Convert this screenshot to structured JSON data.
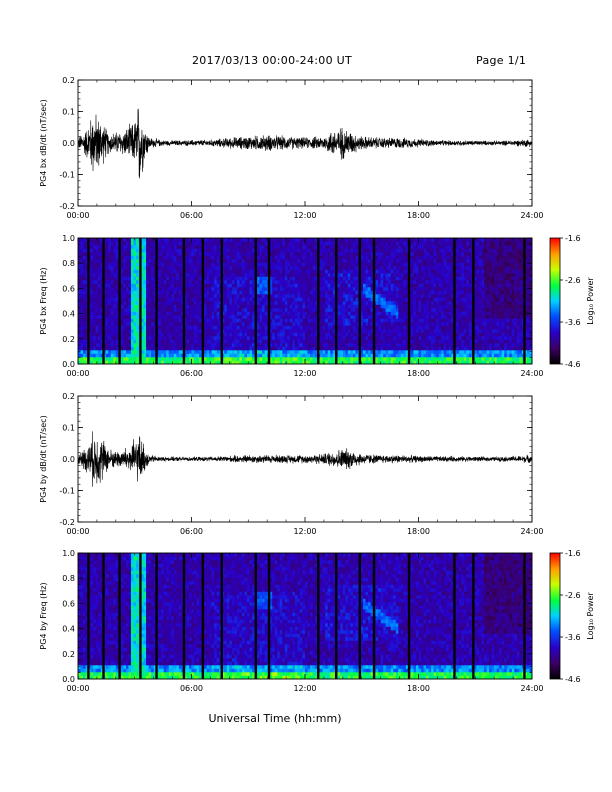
{
  "header": {
    "title": "2017/03/13  00:00-24:00 UT",
    "page": "Page 1/1"
  },
  "xaxis_label": "Universal Time (hh:mm)",
  "chart_data": [
    {
      "type": "line",
      "ylabel": "PG4 bx dB/dt (nT/sec)",
      "ylim": [
        -0.2,
        0.2
      ],
      "yticks": [
        "0.2",
        "0.1",
        "0.0",
        "-0.1",
        "-0.2"
      ],
      "xticks": [
        "00:00",
        "06:00",
        "12:00",
        "18:00",
        "24:00"
      ],
      "xlim_hours": [
        0,
        24
      ],
      "envelope": {
        "hours": [
          0,
          0.5,
          0.8,
          1.2,
          1.6,
          2.0,
          2.5,
          3.0,
          3.25,
          3.5,
          3.8,
          4.5,
          5.5,
          7.0,
          8.0,
          9.0,
          10.0,
          11.0,
          12.0,
          13.0,
          13.5,
          14.0,
          14.5,
          15.0,
          16.0,
          17.0,
          18.0,
          19.0,
          20.0,
          22.0,
          23.0,
          23.8,
          24.0
        ],
        "amplitude": [
          0.02,
          0.06,
          0.12,
          0.09,
          0.04,
          0.04,
          0.05,
          0.08,
          0.17,
          0.07,
          0.02,
          0.01,
          0.01,
          0.012,
          0.02,
          0.025,
          0.03,
          0.025,
          0.02,
          0.025,
          0.05,
          0.06,
          0.04,
          0.025,
          0.02,
          0.02,
          0.015,
          0.01,
          0.01,
          0.008,
          0.01,
          0.015,
          0.01
        ]
      }
    },
    {
      "type": "heatmap",
      "ylabel": "PG4 bx Freq (Hz)",
      "ylim": [
        0.0,
        1.0
      ],
      "yticks": [
        "1.0",
        "0.8",
        "0.6",
        "0.4",
        "0.2",
        "0.0"
      ],
      "xticks": [
        "00:00",
        "06:00",
        "12:00",
        "18:00",
        "24:00"
      ],
      "colorbar": {
        "label": "Log₁₀ Power",
        "ticks": [
          "-1.6",
          "-2.6",
          "-3.6",
          "-4.6"
        ],
        "range": [
          -4.6,
          -1.6
        ]
      },
      "gap_hours": [
        0.55,
        1.35,
        2.2,
        3.3,
        4.15,
        5.6,
        6.6,
        7.6,
        9.4,
        10.1,
        12.7,
        13.65,
        14.9,
        15.65,
        17.5,
        19.9,
        20.9,
        23.6
      ]
    },
    {
      "type": "line",
      "ylabel": "PG4 by dB/dt (nT/sec)",
      "ylim": [
        -0.2,
        0.2
      ],
      "yticks": [
        "0.2",
        "0.1",
        "0.0",
        "-0.1",
        "-0.2"
      ],
      "xticks": [
        "00:00",
        "06:00",
        "12:00",
        "18:00",
        "24:00"
      ],
      "xlim_hours": [
        0,
        24
      ],
      "envelope": {
        "hours": [
          0,
          0.5,
          0.8,
          1.2,
          1.6,
          2.0,
          2.5,
          3.0,
          3.25,
          3.5,
          3.8,
          4.5,
          5.5,
          7.0,
          8.0,
          9.0,
          10.0,
          11.0,
          12.0,
          13.0,
          13.5,
          14.0,
          14.5,
          15.0,
          16.0,
          17.0,
          18.0,
          19.0,
          20.0,
          22.0,
          23.0,
          23.8,
          24.0
        ],
        "amplitude": [
          0.02,
          0.05,
          0.1,
          0.09,
          0.04,
          0.03,
          0.04,
          0.07,
          0.09,
          0.05,
          0.015,
          0.008,
          0.008,
          0.008,
          0.012,
          0.015,
          0.015,
          0.015,
          0.015,
          0.02,
          0.03,
          0.04,
          0.035,
          0.02,
          0.015,
          0.015,
          0.012,
          0.01,
          0.01,
          0.008,
          0.01,
          0.015,
          0.01
        ]
      }
    },
    {
      "type": "heatmap",
      "ylabel": "PG4 by Freq (Hz)",
      "ylim": [
        0.0,
        1.0
      ],
      "yticks": [
        "1.0",
        "0.8",
        "0.6",
        "0.4",
        "0.2",
        "0.0"
      ],
      "xticks": [
        "00:00",
        "06:00",
        "12:00",
        "18:00",
        "24:00"
      ],
      "colorbar": {
        "label": "Log₁₀ Power",
        "ticks": [
          "-1.6",
          "-2.6",
          "-3.6",
          "-4.6"
        ],
        "range": [
          -4.6,
          -1.6
        ]
      },
      "gap_hours": [
        0.55,
        1.35,
        2.2,
        3.3,
        4.15,
        5.6,
        6.6,
        7.6,
        9.4,
        10.1,
        12.7,
        13.65,
        14.9,
        15.65,
        17.5,
        19.9,
        20.9,
        23.6
      ]
    }
  ]
}
